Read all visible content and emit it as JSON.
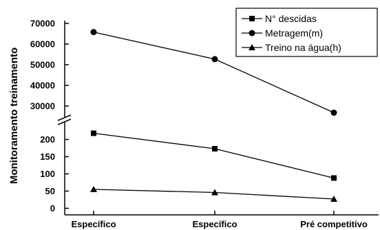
{
  "chart_data": {
    "type": "line",
    "ylabel": "Monitoramento treinamento",
    "categories": [
      "Específico",
      "Específico",
      "Pré competitivo"
    ],
    "axis_break": true,
    "y_lower_range": [
      0,
      240
    ],
    "y_upper_range": [
      25000,
      72000
    ],
    "y_lower_ticks": [
      "0",
      "50",
      "100",
      "150",
      "200"
    ],
    "y_upper_ticks": [
      "30000",
      "40000",
      "50000",
      "60000",
      "70000"
    ],
    "legend_position": "top-right",
    "series": [
      {
        "name": "N° descidas",
        "marker": "square",
        "values": [
          218,
          173,
          88
        ]
      },
      {
        "name": "Metragem(m)",
        "marker": "circle",
        "values": [
          65800,
          52700,
          26800
        ]
      },
      {
        "name": "Treino na água(h)",
        "marker": "triangle",
        "values": [
          55,
          46,
          27
        ]
      }
    ]
  }
}
